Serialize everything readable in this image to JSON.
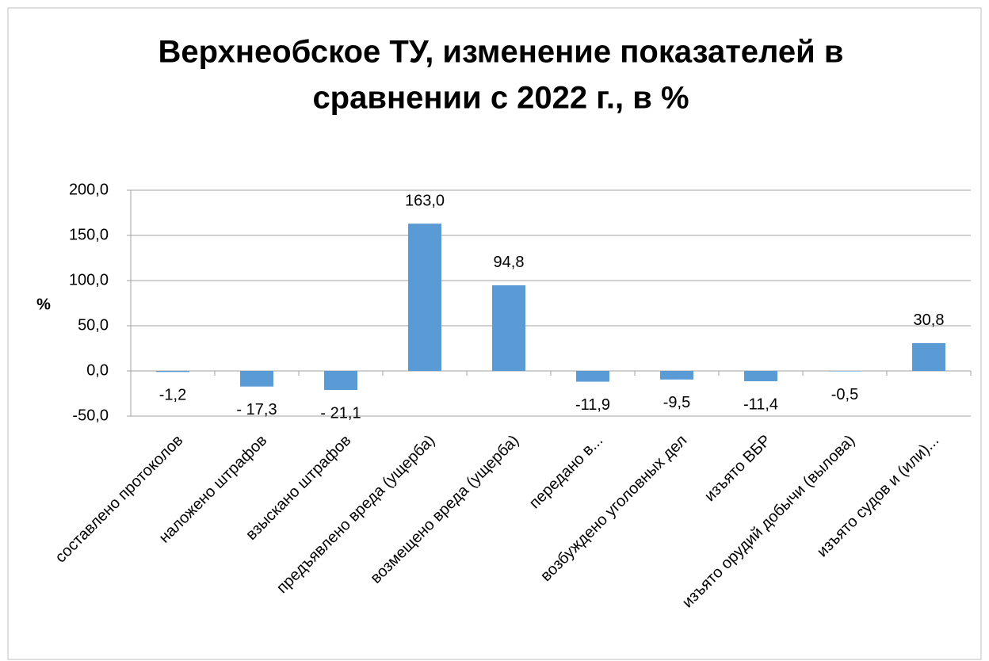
{
  "chart_data": {
    "type": "bar",
    "title": [
      "Верхнеобское ТУ, изменение показателей в",
      "сравнении с 2022 г., в %"
    ],
    "ylabel": "%",
    "categories": [
      "составлено протоколов",
      "наложено штрафов",
      "взыскано штрафов",
      "предъявлено вреда (ущерба)",
      "возмещено вреда (ущерба)",
      "передано в...",
      "возбуждено уголовных дел",
      "изъято ВБР",
      "изъято орудий добычи (вылова)",
      "изъято судов и (или)..."
    ],
    "values": [
      -1.2,
      -17.3,
      -21.1,
      163.0,
      94.8,
      -11.9,
      -9.5,
      -11.4,
      -0.5,
      30.8
    ],
    "value_labels": [
      "-1,2",
      "- 17,3",
      "- 21,1",
      "163,0",
      "94,8",
      "-11,9",
      "-9,5",
      "-11,4",
      "-0,5",
      "30,8"
    ],
    "color": "#5b9bd5",
    "ylim": [
      -50,
      200
    ],
    "yticks": [
      {
        "value": -50,
        "label": "-50,0"
      },
      {
        "value": 0,
        "label": "0,0"
      },
      {
        "value": 50,
        "label": "50,0"
      },
      {
        "value": 100,
        "label": "100,0"
      },
      {
        "value": 150,
        "label": "150,0"
      },
      {
        "value": 200,
        "label": "200,0"
      }
    ],
    "grid": true
  }
}
